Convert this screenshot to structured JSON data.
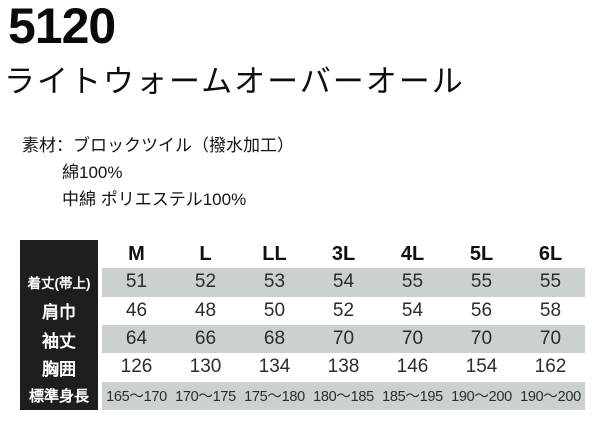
{
  "product": {
    "code": "5120",
    "title": "ライトウォームオーバーオール"
  },
  "material": {
    "label": "素材：",
    "line1": "ブロックツイル（撥水加工）",
    "line2": "綿100%",
    "line3": "中綿 ポリエステル100%"
  },
  "size_table": {
    "columns": [
      "M",
      "L",
      "LL",
      "3L",
      "4L",
      "5L",
      "6L"
    ],
    "rows": [
      {
        "label": "着丈(帯上)",
        "values": [
          "51",
          "52",
          "53",
          "54",
          "55",
          "55",
          "55"
        ]
      },
      {
        "label": "肩巾",
        "values": [
          "46",
          "48",
          "50",
          "52",
          "54",
          "56",
          "58"
        ]
      },
      {
        "label": "袖丈",
        "values": [
          "64",
          "66",
          "68",
          "70",
          "70",
          "70",
          "70"
        ]
      },
      {
        "label": "胸囲",
        "values": [
          "126",
          "130",
          "134",
          "138",
          "146",
          "154",
          "162"
        ]
      },
      {
        "label": "標準身長",
        "values": [
          "165〜170",
          "170〜175",
          "175〜180",
          "180〜185",
          "185〜195",
          "190〜200",
          "190〜200"
        ]
      }
    ]
  },
  "colors": {
    "band": "#cbd1cd",
    "label_column_bg": "#1d1f1d",
    "text": "#111111"
  }
}
